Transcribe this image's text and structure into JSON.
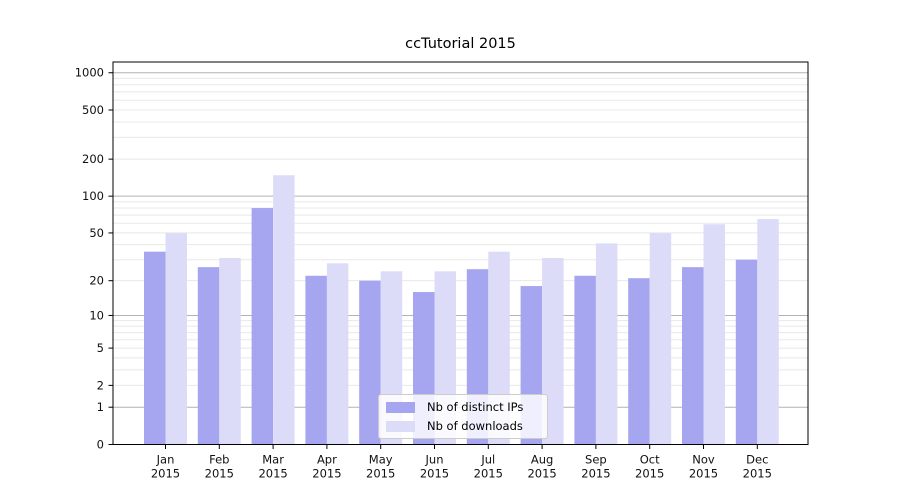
{
  "chart_data": {
    "type": "bar",
    "title": "ccTutorial 2015",
    "categories": [
      "Jan",
      "Feb",
      "Mar",
      "Apr",
      "May",
      "Jun",
      "Jul",
      "Aug",
      "Sep",
      "Oct",
      "Nov",
      "Dec"
    ],
    "category_year": "2015",
    "series": [
      {
        "name": "Nb of distinct IPs",
        "color": "#a5a5f0",
        "values": [
          35,
          26,
          80,
          22,
          20,
          16,
          25,
          18,
          22,
          21,
          26,
          30
        ]
      },
      {
        "name": "Nb of downloads",
        "color": "#dcdcf8",
        "values": [
          50,
          31,
          148,
          28,
          24,
          24,
          35,
          31,
          41,
          50,
          59,
          65
        ]
      }
    ],
    "xlabel": "",
    "ylabel": "",
    "yscale": "log1p",
    "ylim": [
      0,
      1220
    ],
    "y_ticks": [
      0,
      1,
      2,
      5,
      10,
      20,
      50,
      100,
      200,
      500,
      1000
    ],
    "grid": "horizontal; dark lines at decades 1/10/100/1000, light minor lines at 2-9 multiples",
    "grid_major_color": "#b2b2b2",
    "grid_minor_color": "#e8e8e8",
    "axis_color": "#000000",
    "tick_label_color": "#111111",
    "legend_position": "inside plot, lower center"
  }
}
